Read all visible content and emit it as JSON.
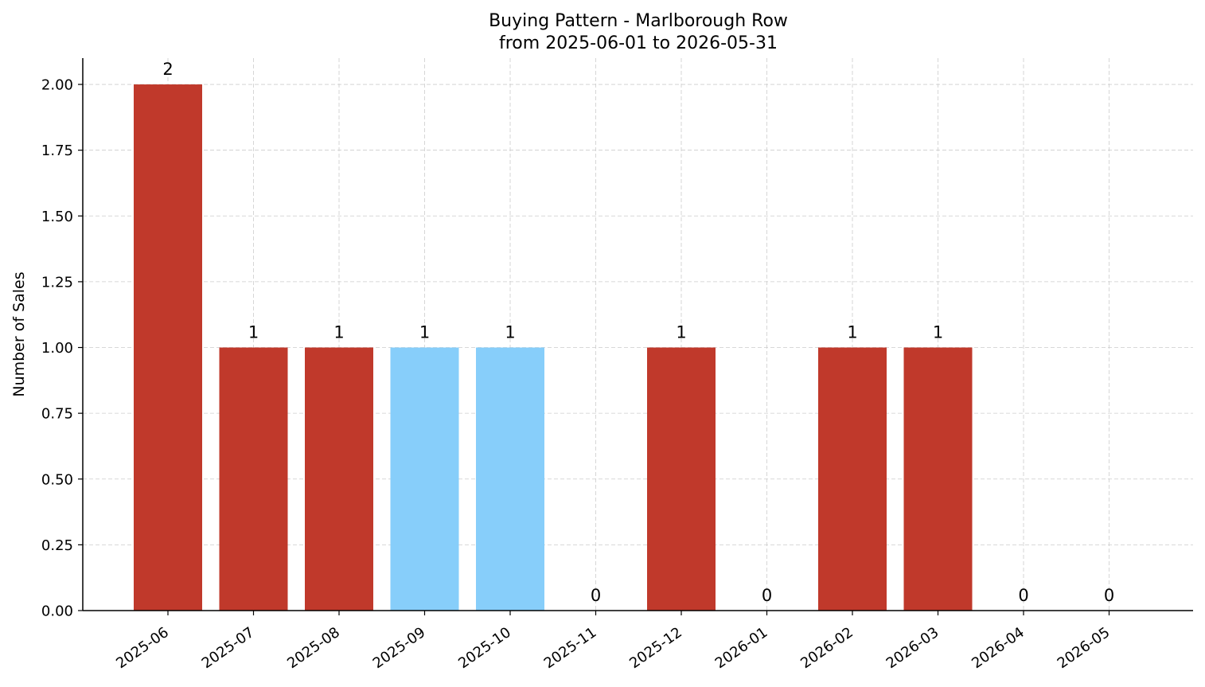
{
  "chart_data": {
    "type": "bar",
    "title": "Buying Pattern - Marlborough Row",
    "subtitle": "from 2025-06-01 to 2026-05-31",
    "xlabel": "",
    "ylabel": "Number of Sales",
    "categories": [
      "2025-06",
      "2025-07",
      "2025-08",
      "2025-09",
      "2025-10",
      "2025-11",
      "2025-12",
      "2026-01",
      "2026-02",
      "2026-03",
      "2026-04",
      "2026-05"
    ],
    "values": [
      2,
      1,
      1,
      1,
      1,
      0,
      1,
      0,
      1,
      1,
      0,
      0
    ],
    "data_labels": [
      "2",
      "1",
      "1",
      "1",
      "1",
      "0",
      "1",
      "0",
      "1",
      "1",
      "0",
      "0"
    ],
    "bar_colors": [
      "#c0392b",
      "#c0392b",
      "#c0392b",
      "#87cefa",
      "#87cefa",
      "#c0392b",
      "#c0392b",
      "#c0392b",
      "#c0392b",
      "#c0392b",
      "#c0392b",
      "#c0392b"
    ],
    "ylim": [
      0,
      2.1
    ],
    "yticks": [
      0,
      0.25,
      0.5,
      0.75,
      1.0,
      1.25,
      1.5,
      1.75,
      2.0
    ],
    "ytick_labels": [
      "0.00",
      "0.25",
      "0.50",
      "0.75",
      "1.00",
      "1.25",
      "1.50",
      "1.75",
      "2.00"
    ],
    "grid": true,
    "legend": "none"
  }
}
